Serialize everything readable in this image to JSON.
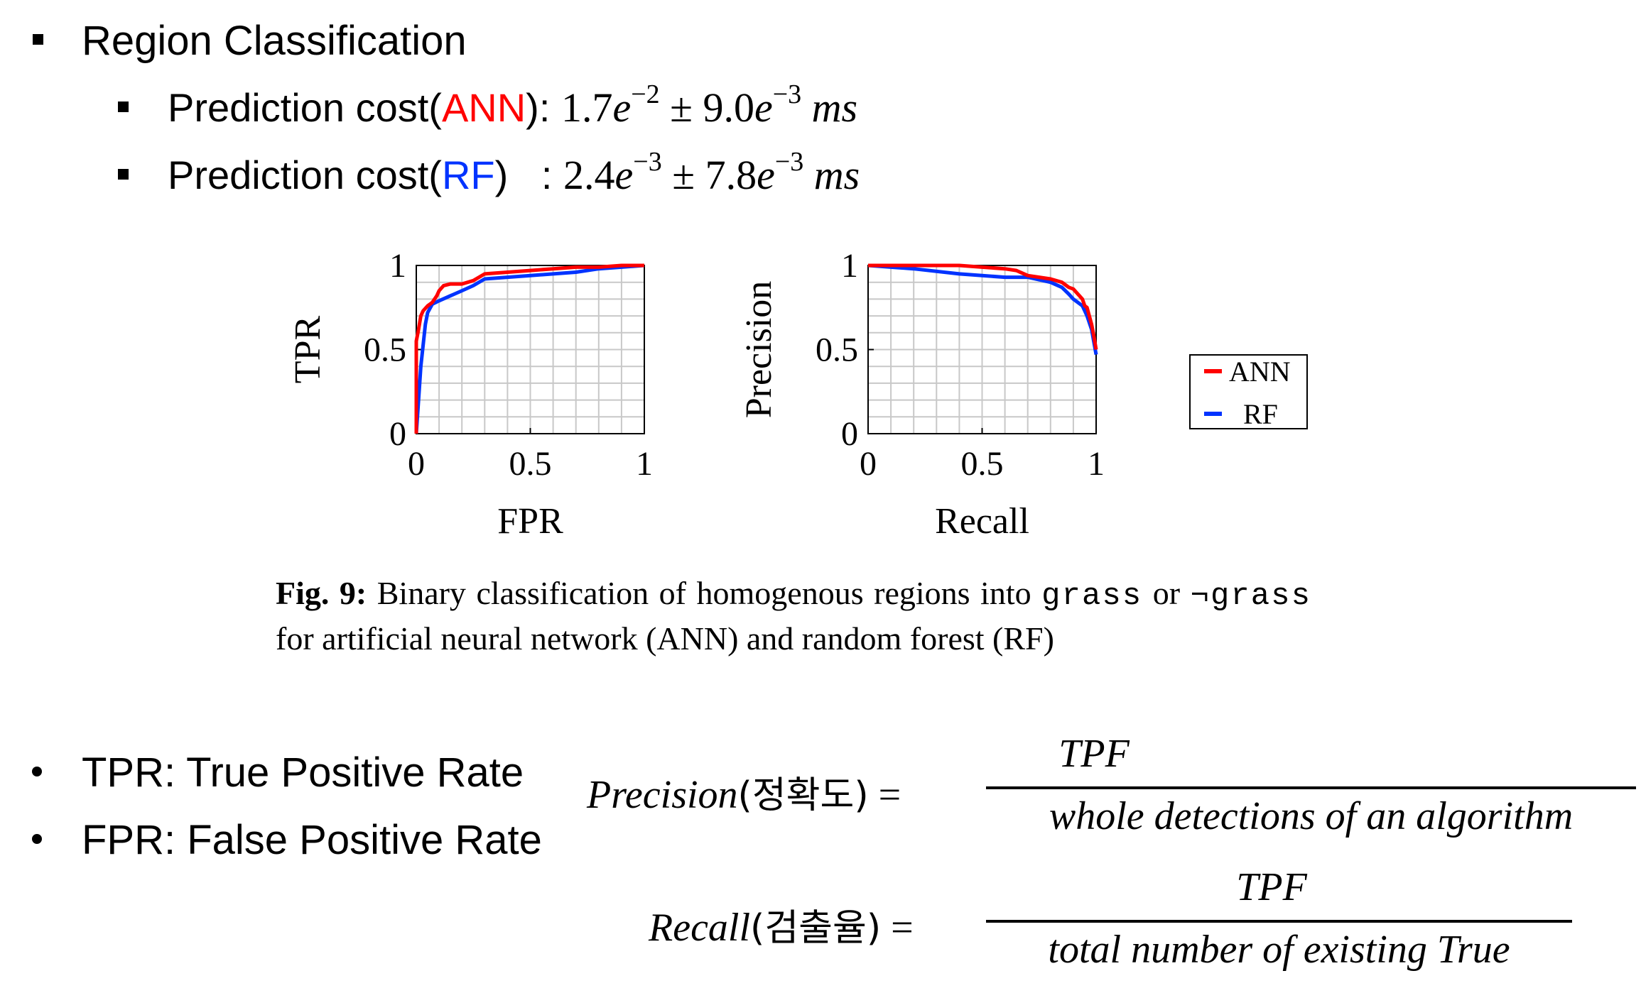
{
  "header": {
    "title": "Region Classification",
    "ann_prefix": "Prediction cost(",
    "ann_name": "ANN",
    "ann_suffix": "): ",
    "ann_m1": "1.7",
    "ann_e1": "−2",
    "ann_pm": " ± ",
    "ann_m2": "9.0",
    "ann_e2": "−3",
    "ann_unit": "ms",
    "rf_prefix": "Prediction cost(",
    "rf_name": "RF",
    "rf_suffix": ")   : ",
    "rf_m1": "2.4",
    "rf_e1": "−3",
    "rf_pm": " ± ",
    "rf_m2": "7.8",
    "rf_e2": "−3",
    "rf_unit": "ms",
    "e": "e"
  },
  "colors": {
    "ann": "#ff0000",
    "rf": "#0033ff",
    "grid": "#c8c8c8"
  },
  "chart_data": [
    {
      "type": "line",
      "title": "",
      "xlabel": "FPR",
      "ylabel": "TPR",
      "xlim": [
        0,
        1
      ],
      "ylim": [
        0,
        1
      ],
      "xticks": [
        "0",
        "0.5",
        "1"
      ],
      "yticks": [
        "0",
        "0.5",
        "1"
      ],
      "grid": true,
      "series": [
        {
          "name": "ANN",
          "color": "#ff0000",
          "x": [
            0,
            0,
            0.01,
            0.02,
            0.03,
            0.05,
            0.07,
            0.09,
            0.1,
            0.12,
            0.15,
            0.2,
            0.25,
            0.3,
            0.4,
            0.5,
            0.6,
            0.7,
            0.8,
            0.9,
            1.0
          ],
          "y": [
            0,
            0.55,
            0.62,
            0.7,
            0.73,
            0.76,
            0.78,
            0.82,
            0.85,
            0.88,
            0.89,
            0.89,
            0.91,
            0.95,
            0.96,
            0.97,
            0.98,
            0.99,
            0.99,
            1.0,
            1.0
          ]
        },
        {
          "name": "RF",
          "color": "#0033ff",
          "x": [
            0,
            0.02,
            0.04,
            0.05,
            0.07,
            0.1,
            0.15,
            0.2,
            0.25,
            0.3,
            0.4,
            0.5,
            0.6,
            0.7,
            0.8,
            0.9,
            1.0
          ],
          "y": [
            0,
            0.4,
            0.65,
            0.72,
            0.77,
            0.79,
            0.82,
            0.85,
            0.88,
            0.92,
            0.93,
            0.94,
            0.95,
            0.96,
            0.98,
            0.99,
            1.0
          ]
        }
      ]
    },
    {
      "type": "line",
      "title": "",
      "xlabel": "Recall",
      "ylabel": "Precision",
      "xlim": [
        0,
        1
      ],
      "ylim": [
        0,
        1
      ],
      "xticks": [
        "0",
        "0.5",
        "1"
      ],
      "yticks": [
        "0",
        "0.5",
        "1"
      ],
      "grid": true,
      "series": [
        {
          "name": "ANN",
          "color": "#ff0000",
          "x": [
            0,
            0.2,
            0.4,
            0.5,
            0.6,
            0.65,
            0.7,
            0.75,
            0.8,
            0.85,
            0.88,
            0.9,
            0.92,
            0.94,
            0.95,
            0.96,
            0.97,
            0.98,
            0.99,
            1.0
          ],
          "y": [
            1.0,
            1.0,
            1.0,
            0.99,
            0.98,
            0.97,
            0.94,
            0.93,
            0.92,
            0.9,
            0.87,
            0.86,
            0.83,
            0.8,
            0.76,
            0.75,
            0.7,
            0.65,
            0.58,
            0.5
          ]
        },
        {
          "name": "RF",
          "color": "#0033ff",
          "x": [
            0,
            0.2,
            0.4,
            0.6,
            0.7,
            0.8,
            0.85,
            0.88,
            0.9,
            0.92,
            0.94,
            0.96,
            0.98,
            1.0
          ],
          "y": [
            1.0,
            0.98,
            0.95,
            0.93,
            0.93,
            0.9,
            0.87,
            0.83,
            0.8,
            0.78,
            0.76,
            0.7,
            0.62,
            0.47
          ]
        }
      ]
    }
  ],
  "legend": {
    "ann": "ANN",
    "rf": "RF"
  },
  "caption": {
    "label": "Fig. 9:",
    "t1": " Binary classification of homogenous regions into ",
    "code1": "grass",
    "t2": " or ",
    "code2": "¬grass",
    "t3": " for artificial neural network (ANN) and random forest (RF)"
  },
  "definitions": {
    "tpr": "TPR: True Positive Rate",
    "fpr": "FPR: False Positive Rate"
  },
  "formulas": {
    "precision_lhs": "Precision",
    "precision_ko": "(정확도)",
    "precision_eq": " =",
    "precision_num": "TPF",
    "precision_den": "whole detections of an algorithm",
    "recall_lhs": "Recall",
    "recall_ko": "(검출율)",
    "recall_eq": " =",
    "recall_num": "TPF",
    "recall_den": "total number of existing True"
  }
}
